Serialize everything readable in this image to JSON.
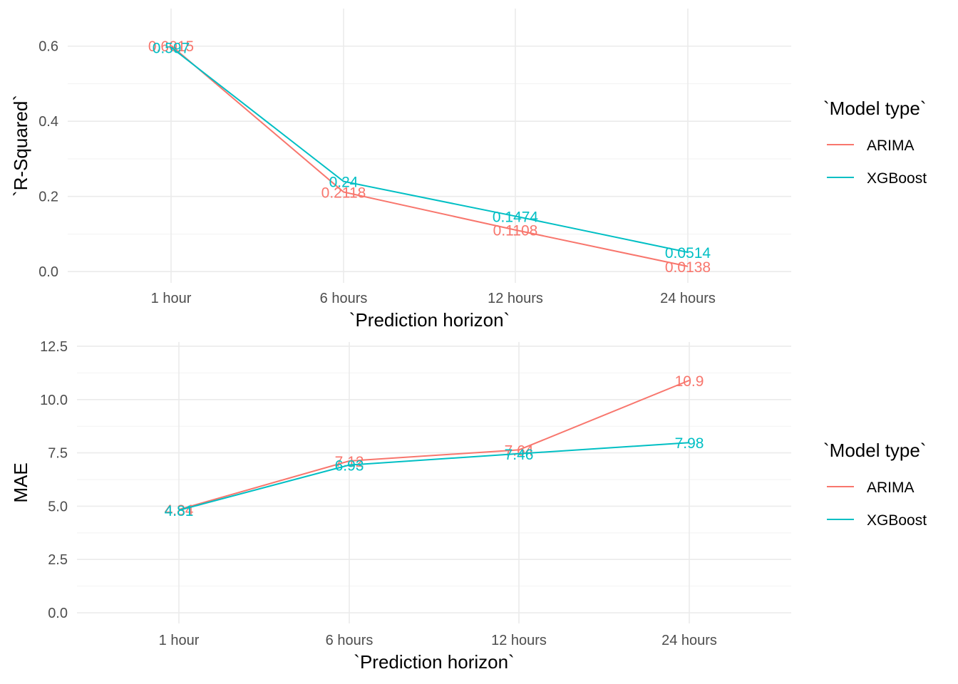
{
  "colors": {
    "ARIMA": "#F8766D",
    "XGBoost": "#00BFC4"
  },
  "chart_data": [
    {
      "type": "line",
      "categories": [
        "1 hour",
        "6 hours",
        "12 hours",
        "24 hours"
      ],
      "series": [
        {
          "name": "ARIMA",
          "values": [
            0.6015,
            0.2118,
            0.1108,
            0.0138
          ],
          "labels": [
            "0.6015",
            "0.2118",
            "0.1108",
            "0.0138"
          ]
        },
        {
          "name": "XGBoost",
          "values": [
            0.597,
            0.24,
            0.1474,
            0.0514
          ],
          "labels": [
            "0.597",
            "0.24",
            "0.1474",
            "0.0514"
          ]
        }
      ],
      "xlabel": "`Prediction horizon`",
      "ylabel": "`R-Squared`",
      "ylim": [
        -0.03,
        0.7
      ],
      "yticks": [
        0.0,
        0.2,
        0.4,
        0.6
      ],
      "ytick_labels": [
        "0.0",
        "0.2",
        "0.4",
        "0.6"
      ],
      "legend_title": "`Model type`",
      "legend_position": "right",
      "grid": true
    },
    {
      "type": "line",
      "categories": [
        "1 hour",
        "6 hours",
        "12 hours",
        "24 hours"
      ],
      "series": [
        {
          "name": "ARIMA",
          "values": [
            4.84,
            7.12,
            7.64,
            10.9
          ],
          "labels": [
            "4.84",
            "7.12",
            "7.64",
            "10.9"
          ]
        },
        {
          "name": "XGBoost",
          "values": [
            4.81,
            6.93,
            7.46,
            7.98
          ],
          "labels": [
            "4.81",
            "6.93",
            "7.46",
            "7.98"
          ]
        }
      ],
      "xlabel": "`Prediction horizon`",
      "ylabel": "MAE",
      "ylim": [
        -0.5,
        12.7
      ],
      "yticks": [
        0.0,
        2.5,
        5.0,
        7.5,
        10.0,
        12.5
      ],
      "ytick_labels": [
        "0.0",
        "2.5",
        "5.0",
        "7.5",
        "10.0",
        "12.5"
      ],
      "legend_title": "`Model type`",
      "legend_position": "right",
      "grid": true
    }
  ]
}
